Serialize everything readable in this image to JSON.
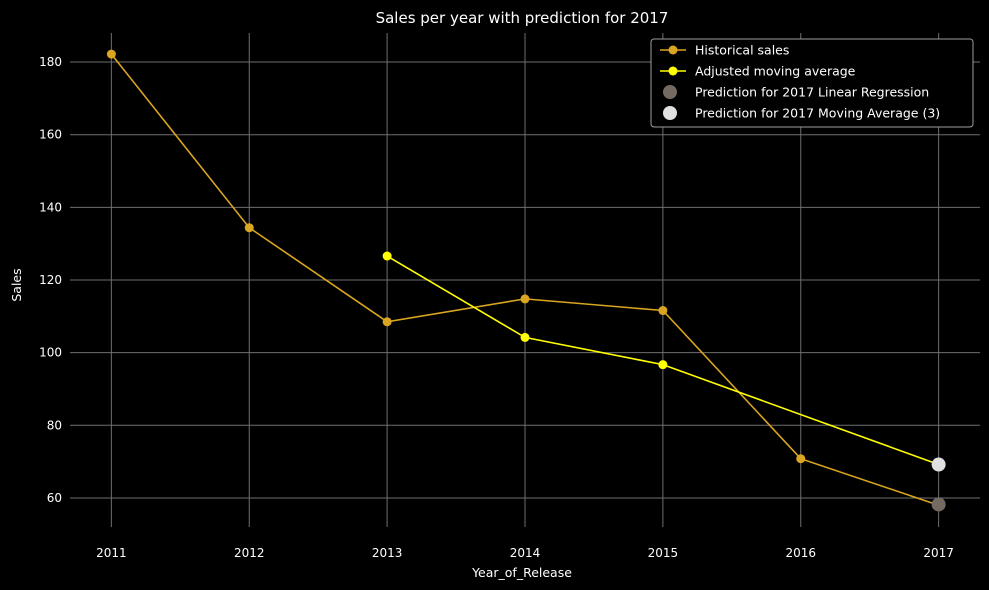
{
  "chart_data": {
    "type": "line",
    "title": "Sales per year with prediction for 2017",
    "xlabel": "Year_of_Release",
    "ylabel": "Sales",
    "xlim": [
      2010.7,
      2017.3
    ],
    "ylim": [
      52,
      188
    ],
    "x_ticks": [
      "2011",
      "2012",
      "2013",
      "2014",
      "2015",
      "2016",
      "2017"
    ],
    "y_ticks": [
      60,
      80,
      100,
      120,
      140,
      160,
      180
    ],
    "grid": true,
    "legend_position": "top-right",
    "series": [
      {
        "name": "Historical sales",
        "kind": "line-marker",
        "color": "#DAA520",
        "x": [
          2011,
          2012,
          2013,
          2014,
          2015,
          2016,
          2017
        ],
        "y": [
          182.2,
          134.4,
          108.5,
          114.8,
          111.6,
          70.8,
          58.0
        ]
      },
      {
        "name": "Adjusted moving average",
        "kind": "line-marker",
        "color": "#FFFF00",
        "marker_points": [
          2013,
          2014,
          2015
        ],
        "x": [
          2013,
          2014,
          2015,
          2017
        ],
        "y": [
          126.6,
          104.2,
          96.7,
          69.2
        ]
      },
      {
        "name": "Prediction for 2017 Linear Regression",
        "kind": "point",
        "color": "#756A62",
        "x": [
          2017
        ],
        "y": [
          58.2
        ]
      },
      {
        "name": "Prediction for 2017 Moving Average (3)",
        "kind": "point",
        "color": "#E0E0E0",
        "x": [
          2017
        ],
        "y": [
          69.2
        ]
      }
    ]
  }
}
